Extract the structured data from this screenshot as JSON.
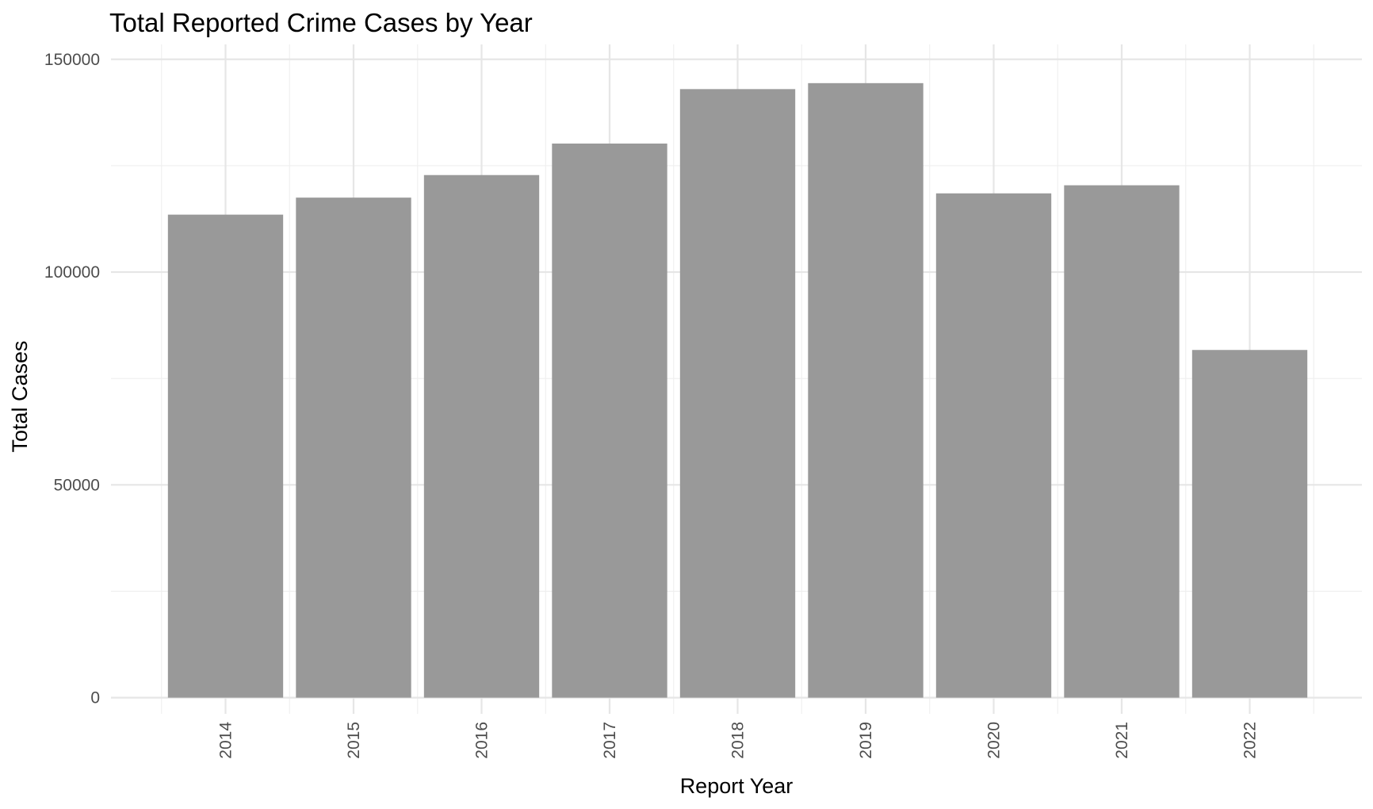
{
  "chart_data": {
    "type": "bar",
    "title": "Total Reported Crime Cases by Year",
    "xlabel": "Report Year",
    "ylabel": "Total Cases",
    "categories": [
      "2014",
      "2015",
      "2016",
      "2017",
      "2018",
      "2019",
      "2020",
      "2021",
      "2022"
    ],
    "values": [
      113500,
      117500,
      122800,
      130200,
      143000,
      144400,
      118500,
      120400,
      81700
    ],
    "ylim": [
      -3800,
      153500
    ],
    "yticks": [
      0,
      50000,
      100000,
      150000
    ],
    "ytick_labels": [
      "0",
      "50000",
      "100000",
      "150000"
    ],
    "grid": true,
    "legend": "none",
    "colors": {
      "bar": "#999999",
      "grid": "#e6e6e6",
      "background": "#ffffff",
      "tick_text": "#4d4d4d"
    }
  }
}
